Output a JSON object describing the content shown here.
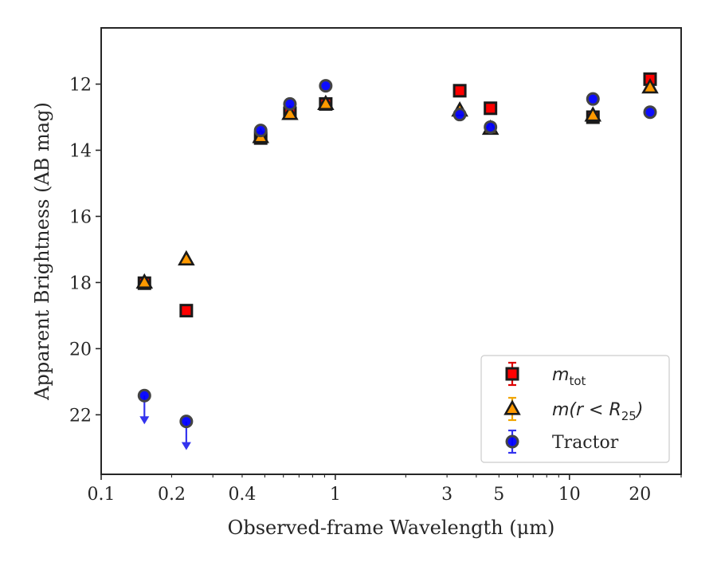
{
  "chart_data": {
    "type": "scatter",
    "title": "",
    "xlabel": "Observed-frame Wavelength (μm)",
    "ylabel": "Apparent Brightness (AB mag)",
    "xscale": "log",
    "yscale": "linear",
    "y_inverted": true,
    "xlim": [
      0.1,
      30
    ],
    "ylim": [
      23.8,
      10.3
    ],
    "xticks": [
      {
        "value": 0.1,
        "label": "0.1"
      },
      {
        "value": 0.2,
        "label": "0.2"
      },
      {
        "value": 0.4,
        "label": "0.4"
      },
      {
        "value": 1,
        "label": "1"
      },
      {
        "value": 3,
        "label": "3"
      },
      {
        "value": 5,
        "label": "5"
      },
      {
        "value": 10,
        "label": "10"
      },
      {
        "value": 20,
        "label": "20"
      }
    ],
    "yticks": [
      {
        "value": 12,
        "label": "12"
      },
      {
        "value": 14,
        "label": "14"
      },
      {
        "value": 16,
        "label": "16"
      },
      {
        "value": 18,
        "label": "18"
      },
      {
        "value": 20,
        "label": "20"
      },
      {
        "value": 22,
        "label": "22"
      }
    ],
    "grid": false,
    "legend_position": "lower right",
    "series": [
      {
        "name": "m_tot",
        "label_main": "m",
        "label_sub": "tot",
        "marker": "square",
        "color": "#ff0000",
        "edgecolor": "#1a1a1a",
        "points": [
          {
            "x": 0.153,
            "y": 18.02
          },
          {
            "x": 0.231,
            "y": 18.85
          },
          {
            "x": 0.48,
            "y": 13.63
          },
          {
            "x": 0.64,
            "y": 12.88
          },
          {
            "x": 0.91,
            "y": 12.6
          },
          {
            "x": 3.4,
            "y": 12.2
          },
          {
            "x": 4.6,
            "y": 12.73
          },
          {
            "x": 12.6,
            "y": 13.0
          },
          {
            "x": 22.1,
            "y": 11.85
          }
        ]
      },
      {
        "name": "m(r<R_25)",
        "label_main": "m(r < R",
        "label_sub": "25",
        "label_tail": ")",
        "marker": "triangle",
        "color": "#ff9900",
        "edgecolor": "#1a1a1a",
        "points": [
          {
            "x": 0.153,
            "y": 18.0
          },
          {
            "x": 0.231,
            "y": 17.3
          },
          {
            "x": 0.48,
            "y": 13.6
          },
          {
            "x": 0.64,
            "y": 12.9
          },
          {
            "x": 0.91,
            "y": 12.6
          },
          {
            "x": 3.4,
            "y": 12.8
          },
          {
            "x": 4.6,
            "y": 13.35
          },
          {
            "x": 12.6,
            "y": 12.95
          },
          {
            "x": 22.1,
            "y": 12.1
          }
        ]
      },
      {
        "name": "Tractor",
        "label_main": "Tractor",
        "marker": "circle",
        "color": "#0000ff",
        "edgecolor": "#444444",
        "points": [
          {
            "x": 0.153,
            "y": 21.42,
            "upper_limit": true
          },
          {
            "x": 0.231,
            "y": 22.2,
            "upper_limit": true
          },
          {
            "x": 0.48,
            "y": 13.4
          },
          {
            "x": 0.64,
            "y": 12.6
          },
          {
            "x": 0.91,
            "y": 12.05
          },
          {
            "x": 3.4,
            "y": 12.92
          },
          {
            "x": 4.6,
            "y": 13.3
          },
          {
            "x": 12.6,
            "y": 12.45
          },
          {
            "x": 22.1,
            "y": 12.85
          }
        ]
      }
    ]
  }
}
